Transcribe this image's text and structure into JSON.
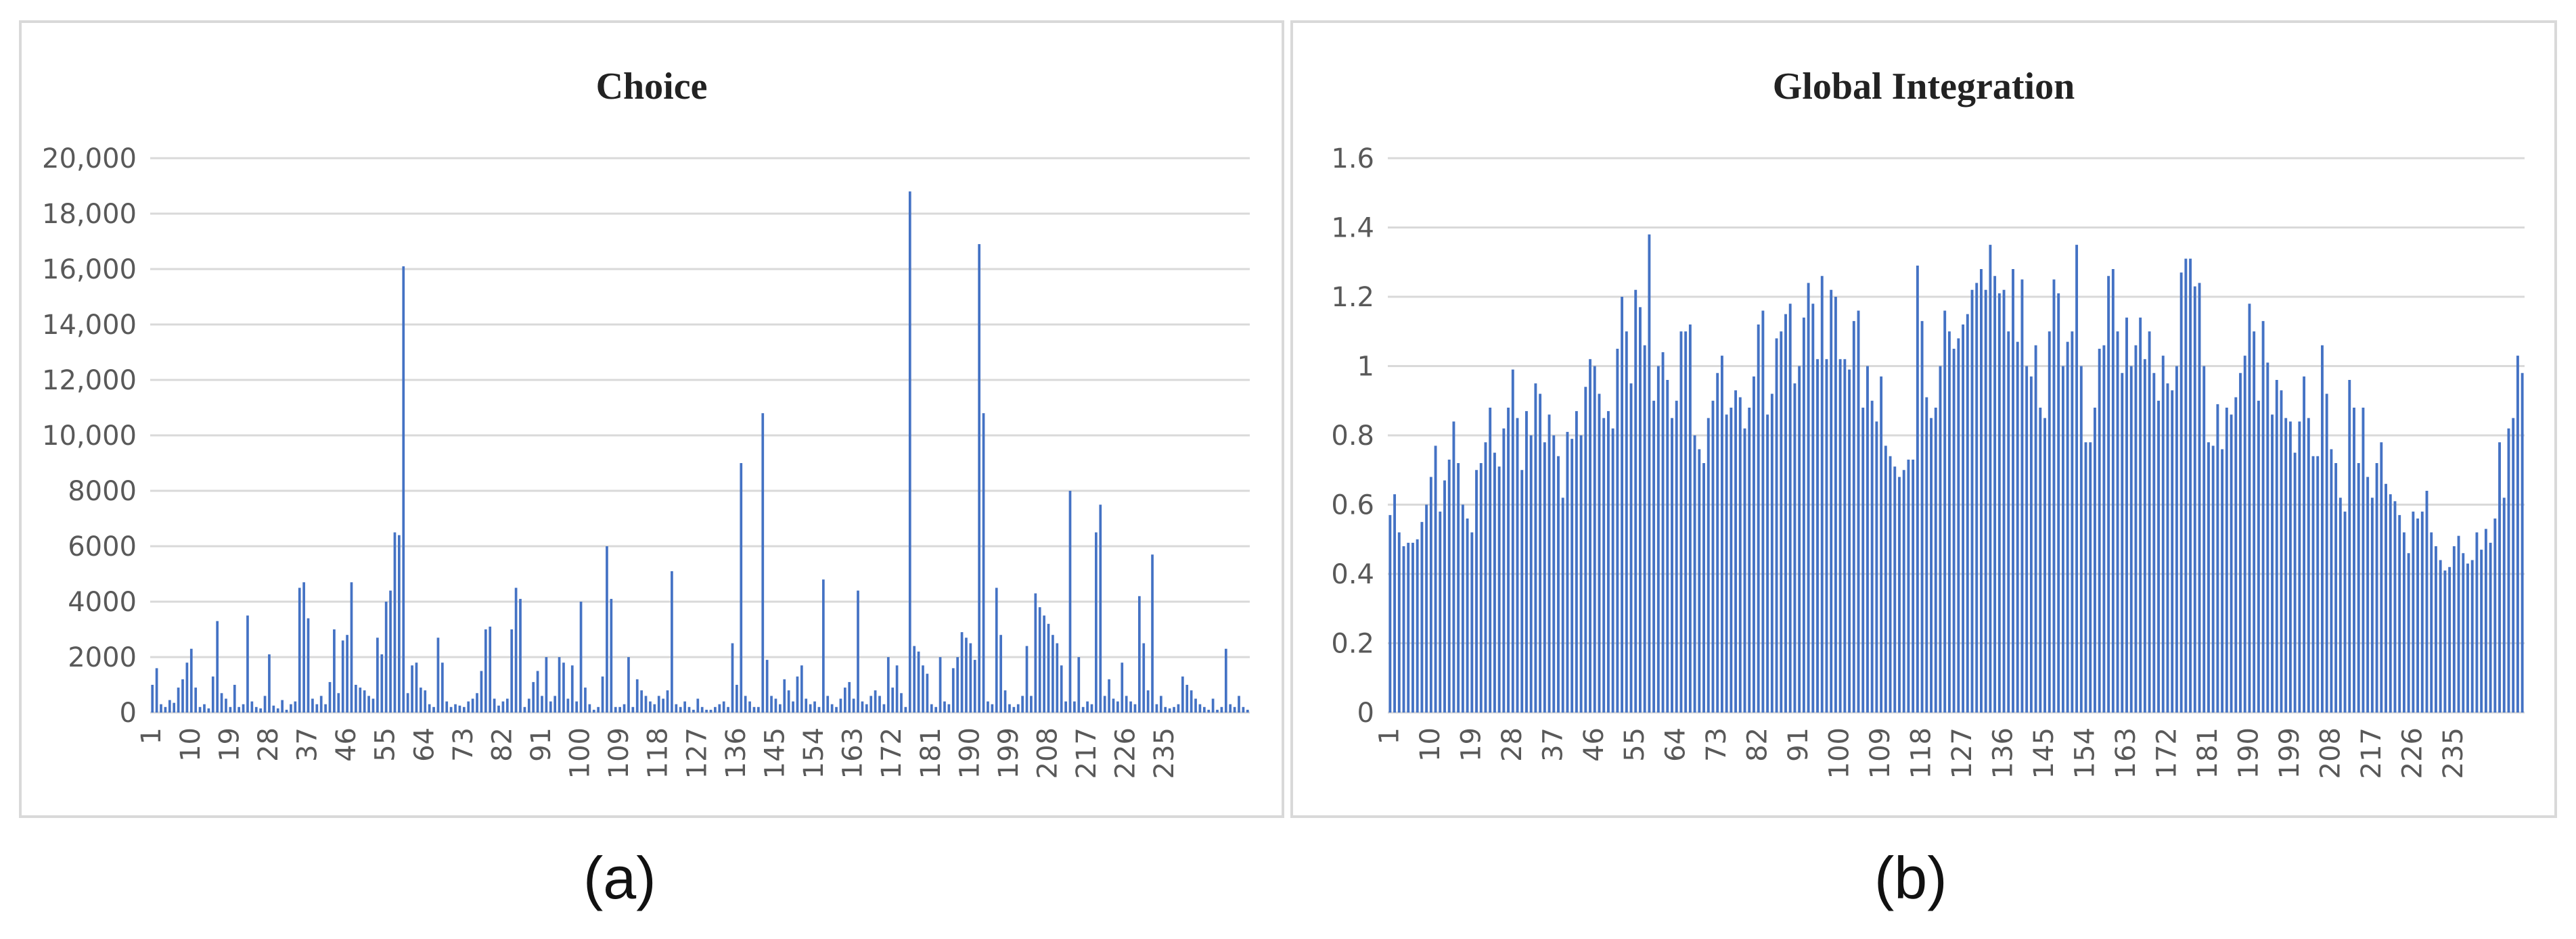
{
  "figure": {
    "label_a": "(a)",
    "label_b": "(b)"
  },
  "colors": {
    "bar": "#4472C4",
    "grid": "#d9d9d9",
    "axis_text": "#595959"
  },
  "chart_data": [
    {
      "type": "bar",
      "title": "Choice",
      "xlabel": "",
      "ylabel": "",
      "ylim": [
        0,
        20000
      ],
      "yticks": [
        0,
        2000,
        4000,
        6000,
        8000,
        10000,
        12000,
        14000,
        16000,
        18000,
        20000
      ],
      "ytick_labels": [
        "0",
        "2000",
        "4000",
        "6000",
        "8000",
        "10,000",
        "12,000",
        "14,000",
        "16,000",
        "18,000",
        "20,000"
      ],
      "x_start": 1,
      "x_tick_labels": [
        1,
        10,
        19,
        28,
        37,
        46,
        55,
        64,
        73,
        82,
        91,
        100,
        109,
        118,
        127,
        136,
        145,
        154,
        163,
        172,
        181,
        190,
        199,
        208,
        217,
        226,
        235
      ],
      "grid": "horizontal",
      "values": [
        1000,
        1600,
        300,
        200,
        450,
        350,
        900,
        1200,
        1800,
        2300,
        900,
        200,
        300,
        150,
        1300,
        3300,
        700,
        500,
        200,
        1000,
        200,
        300,
        3500,
        400,
        200,
        150,
        600,
        2100,
        250,
        150,
        450,
        100,
        300,
        400,
        4500,
        4700,
        3400,
        500,
        300,
        600,
        300,
        1100,
        3000,
        700,
        2600,
        2800,
        4700,
        1000,
        900,
        800,
        600,
        500,
        2700,
        2100,
        4000,
        4400,
        6500,
        6400,
        16100,
        700,
        1700,
        1800,
        900,
        800,
        300,
        200,
        2700,
        1800,
        400,
        200,
        300,
        250,
        200,
        400,
        500,
        700,
        1500,
        3000,
        3100,
        500,
        250,
        400,
        500,
        3000,
        4500,
        4100,
        200,
        500,
        1100,
        1500,
        600,
        2000,
        400,
        600,
        2000,
        1800,
        500,
        1700,
        400,
        4000,
        900,
        300,
        100,
        200,
        1300,
        6000,
        4100,
        200,
        200,
        300,
        2000,
        200,
        1200,
        800,
        600,
        400,
        300,
        600,
        500,
        800,
        5100,
        300,
        200,
        400,
        200,
        100,
        500,
        200,
        100,
        100,
        200,
        300,
        400,
        200,
        2500,
        1000,
        9000,
        600,
        400,
        200,
        200,
        10800,
        1900,
        600,
        500,
        300,
        1200,
        800,
        400,
        1300,
        1700,
        500,
        300,
        400,
        200,
        4800,
        600,
        300,
        200,
        500,
        900,
        1100,
        500,
        4400,
        400,
        300,
        600,
        800,
        600,
        300,
        2000,
        900,
        1700,
        700,
        200,
        18800,
        2400,
        2200,
        1700,
        1400,
        300,
        200,
        2000,
        400,
        300,
        1600,
        2000,
        2900,
        2700,
        2500,
        1900,
        16900,
        10800,
        400,
        300,
        4500,
        2800,
        800,
        300,
        200,
        300,
        600,
        2400,
        600,
        4300,
        3800,
        3500,
        3200,
        2800,
        2500,
        1700,
        400,
        8000,
        400,
        2000,
        200,
        400,
        300,
        6500,
        7500,
        600,
        1200,
        500,
        400,
        1800,
        600,
        400,
        300,
        4200,
        2500,
        800,
        5700,
        300,
        600,
        200,
        150,
        200,
        300,
        1300,
        1000,
        800,
        500,
        300,
        200,
        100,
        500,
        100,
        200,
        2300,
        300,
        200,
        600,
        200,
        100
      ]
    },
    {
      "type": "bar",
      "title": "Global Integration",
      "xlabel": "",
      "ylabel": "",
      "ylim": [
        0,
        1.6
      ],
      "yticks": [
        0,
        0.2,
        0.4,
        0.6,
        0.8,
        1.0,
        1.2,
        1.4,
        1.6
      ],
      "ytick_labels": [
        "0",
        "0.2",
        "0.4",
        "0.6",
        "0.8",
        "1",
        "1.2",
        "1.4",
        "1.6"
      ],
      "x_start": 1,
      "x_tick_labels": [
        1,
        10,
        19,
        28,
        37,
        46,
        55,
        64,
        73,
        82,
        91,
        100,
        109,
        118,
        127,
        136,
        145,
        154,
        163,
        172,
        181,
        190,
        199,
        208,
        217,
        226,
        235
      ],
      "grid": "horizontal",
      "values": [
        0.57,
        0.63,
        0.52,
        0.48,
        0.49,
        0.49,
        0.5,
        0.55,
        0.6,
        0.68,
        0.77,
        0.58,
        0.67,
        0.73,
        0.84,
        0.72,
        0.6,
        0.56,
        0.52,
        0.7,
        0.72,
        0.78,
        0.88,
        0.75,
        0.71,
        0.82,
        0.88,
        0.99,
        0.85,
        0.7,
        0.87,
        0.8,
        0.95,
        0.92,
        0.78,
        0.86,
        0.8,
        0.74,
        0.62,
        0.81,
        0.79,
        0.87,
        0.8,
        0.94,
        1.02,
        1.0,
        0.92,
        0.85,
        0.87,
        0.82,
        1.05,
        1.2,
        1.1,
        0.95,
        1.22,
        1.17,
        1.06,
        1.38,
        0.9,
        1.0,
        1.04,
        0.96,
        0.85,
        0.9,
        1.1,
        1.1,
        1.12,
        0.8,
        0.76,
        0.72,
        0.85,
        0.9,
        0.98,
        1.03,
        0.86,
        0.88,
        0.93,
        0.91,
        0.82,
        0.88,
        0.97,
        1.12,
        1.16,
        0.86,
        0.92,
        1.08,
        1.1,
        1.15,
        1.18,
        0.95,
        1.0,
        1.14,
        1.24,
        1.18,
        1.02,
        1.26,
        1.02,
        1.22,
        1.2,
        1.02,
        1.02,
        0.99,
        1.13,
        1.16,
        0.88,
        1.0,
        0.9,
        0.84,
        0.97,
        0.77,
        0.74,
        0.71,
        0.68,
        0.7,
        0.73,
        0.73,
        1.29,
        1.13,
        0.91,
        0.85,
        0.88,
        1.0,
        1.16,
        1.1,
        1.05,
        1.08,
        1.12,
        1.15,
        1.22,
        1.24,
        1.28,
        1.22,
        1.35,
        1.26,
        1.21,
        1.22,
        1.1,
        1.28,
        1.07,
        1.25,
        1.0,
        0.97,
        1.06,
        0.88,
        0.85,
        1.1,
        1.25,
        1.21,
        1.0,
        1.07,
        1.1,
        1.35,
        1.0,
        0.78,
        0.78,
        0.88,
        1.05,
        1.06,
        1.26,
        1.28,
        1.1,
        0.98,
        1.14,
        1.0,
        1.06,
        1.14,
        1.02,
        1.1,
        0.98,
        0.9,
        1.03,
        0.95,
        0.93,
        1.0,
        1.27,
        1.31,
        1.31,
        1.23,
        1.24,
        1.0,
        0.78,
        0.77,
        0.89,
        0.76,
        0.88,
        0.86,
        0.91,
        0.98,
        1.03,
        1.18,
        1.1,
        0.9,
        1.13,
        1.01,
        0.86,
        0.96,
        0.93,
        0.85,
        0.84,
        0.75,
        0.84,
        0.97,
        0.85,
        0.74,
        0.74,
        1.06,
        0.92,
        0.76,
        0.72,
        0.62,
        0.58,
        0.96,
        0.88,
        0.72,
        0.88,
        0.68,
        0.62,
        0.72,
        0.78,
        0.66,
        0.63,
        0.61,
        0.57,
        0.52,
        0.46,
        0.58,
        0.56,
        0.58,
        0.64,
        0.52,
        0.48,
        0.44,
        0.41,
        0.42,
        0.48,
        0.51,
        0.46,
        0.43,
        0.44,
        0.52,
        0.47,
        0.53,
        0.49,
        0.56,
        0.78,
        0.62,
        0.82,
        0.85,
        1.03,
        0.98
      ]
    }
  ]
}
